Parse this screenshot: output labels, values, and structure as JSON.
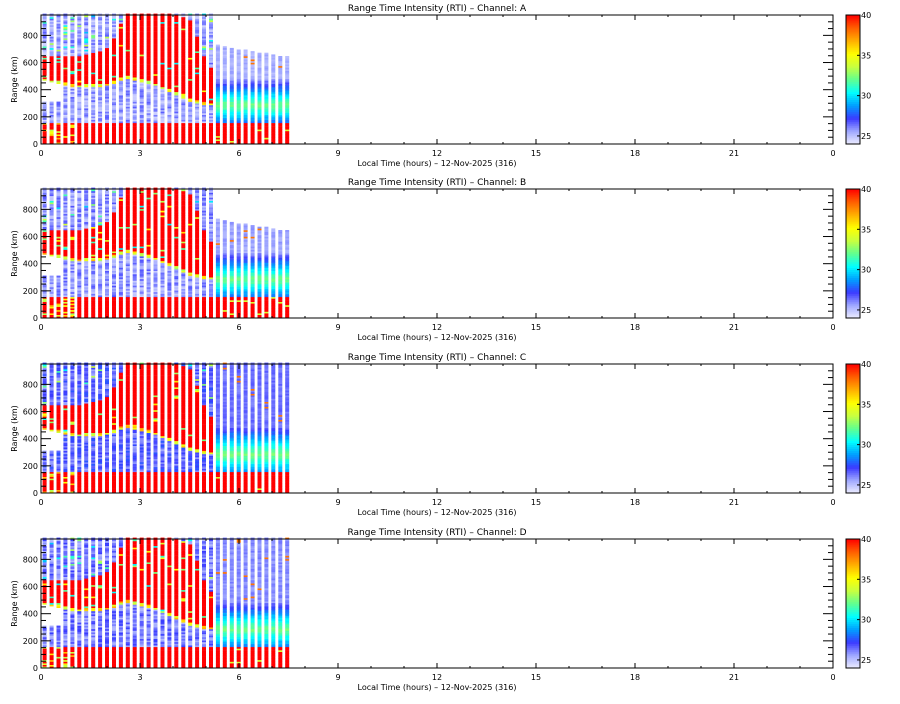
{
  "chart_data": {
    "type": "heatmap",
    "shared": {
      "xlabel": "Local Time (hours) – 12-Nov-2025 (316)",
      "ylabel": "Range (km)",
      "xlim": [
        0,
        24
      ],
      "ylim": [
        0,
        950
      ],
      "xticks": [
        0,
        3,
        6,
        9,
        12,
        15,
        18,
        21,
        24
      ],
      "xtick_labels": [
        "0",
        "3",
        "6",
        "9",
        "12",
        "15",
        "18",
        "21",
        "0"
      ],
      "yticks": [
        0,
        200,
        400,
        600,
        800
      ],
      "ytick_labels": [
        "0",
        "200",
        "400",
        "600",
        "800"
      ],
      "colorbar": {
        "range": [
          24,
          40
        ],
        "ticks": [
          25,
          30,
          35,
          40
        ],
        "tick_labels": [
          "25",
          "30",
          "35",
          "40"
        ],
        "colormap": [
          "#eeeeff",
          "#a0a8ff",
          "#3a3aff",
          "#00a0ff",
          "#00ffff",
          "#60ff90",
          "#c8ff40",
          "#ffff00",
          "#ffb000",
          "#ff6000",
          "#ff0000"
        ]
      },
      "data_end_hour": 7.6,
      "stripe_period_hours": 0.21,
      "low_layer_top_km": 150,
      "upper_red_profile": [
        {
          "t": 0.0,
          "bottom_km": 480,
          "top_km": 640
        },
        {
          "t": 1.0,
          "bottom_km": 430,
          "top_km": 640
        },
        {
          "t": 2.0,
          "bottom_km": 440,
          "top_km": 700
        },
        {
          "t": 2.5,
          "bottom_km": 500,
          "top_km": 950
        },
        {
          "t": 3.3,
          "bottom_km": 450,
          "top_km": 950
        },
        {
          "t": 4.0,
          "bottom_km": 380,
          "top_km": 950
        },
        {
          "t": 4.5,
          "bottom_km": 320,
          "top_km": 900
        },
        {
          "t": 5.0,
          "bottom_km": 300,
          "top_km": 560
        },
        {
          "t": 5.2,
          "bottom_km": 0,
          "top_km": 0
        }
      ],
      "late_layer": {
        "start_hour": 5.3,
        "center_km": 280,
        "peak_value": 32
      }
    },
    "panels": [
      {
        "id": "A",
        "title": "Range Time Intensity (RTI) – Channel: A",
        "seed": 11,
        "background_level": 25.0
      },
      {
        "id": "B",
        "title": "Range Time Intensity (RTI) – Channel: B",
        "seed": 23,
        "background_level": 25.2
      },
      {
        "id": "C",
        "title": "Range Time Intensity (RTI) – Channel: C",
        "seed": 37,
        "background_level": 26.0
      },
      {
        "id": "D",
        "title": "Range Time Intensity (RTI) – Channel: D",
        "seed": 51,
        "background_level": 25.6
      }
    ]
  }
}
